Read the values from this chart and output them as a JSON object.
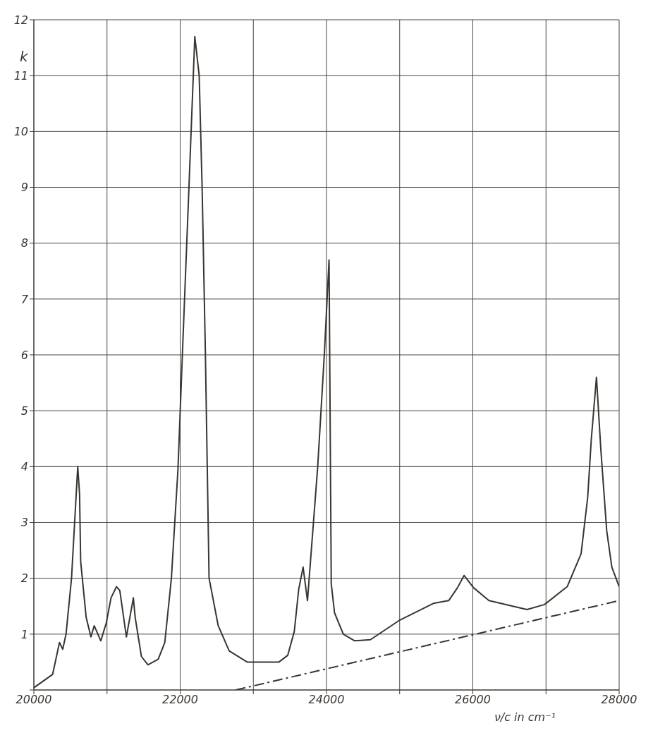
{
  "chart_data": {
    "type": "line",
    "ylabel": "k",
    "xlabel": "ν/c in cm⁻¹",
    "xlim": [
      20000,
      28000
    ],
    "ylim": [
      0,
      12
    ],
    "xticks": [
      20000,
      {
        "value": 21000,
        "label": null
      },
      22000,
      {
        "value": 23000,
        "label": null
      },
      24000,
      {
        "value": 25000,
        "label": null
      },
      26000,
      {
        "value": 27000,
        "label": null
      },
      28000
    ],
    "yticks": [
      {
        "value": 0,
        "label": null
      },
      1,
      2,
      3,
      4,
      5,
      6,
      7,
      8,
      9,
      10,
      11,
      12
    ],
    "grid": true,
    "marker": "none",
    "series": [
      {
        "color": "#3a3530",
        "line_style": "solid",
        "x": [
          20000,
          20257,
          20350,
          20395,
          20440,
          20515,
          20600,
          20625,
          20640,
          20715,
          20780,
          20825,
          20915,
          20990,
          21055,
          21130,
          21175,
          21265,
          21360,
          21385,
          21470,
          21560,
          21700,
          21790,
          21880,
          21970,
          22030,
          22120,
          22200,
          22260,
          22300,
          22345,
          22370,
          22395,
          22520,
          22670,
          22915,
          23350,
          23470,
          23560,
          23620,
          23680,
          23740,
          23880,
          23970,
          24035,
          24065,
          24110,
          24230,
          24385,
          24600,
          25000,
          25460,
          25670,
          25790,
          25880,
          26010,
          26220,
          26740,
          26980,
          27290,
          27480,
          27570,
          27620,
          27690,
          27750,
          27830,
          27900,
          28000
        ],
        "values": [
          0.04,
          0.28,
          0.85,
          0.73,
          1.0,
          2.0,
          4.0,
          3.5,
          2.3,
          1.3,
          0.95,
          1.15,
          0.88,
          1.2,
          1.65,
          1.85,
          1.78,
          0.95,
          1.65,
          1.3,
          0.6,
          0.45,
          0.55,
          0.85,
          2.0,
          3.95,
          6.0,
          9.0,
          11.7,
          11.0,
          9.0,
          6.0,
          4.0,
          2.0,
          1.15,
          0.7,
          0.5,
          0.5,
          0.62,
          1.05,
          1.8,
          2.2,
          1.6,
          4.0,
          6.0,
          7.7,
          1.9,
          1.38,
          1.0,
          0.88,
          0.9,
          1.25,
          1.55,
          1.6,
          1.83,
          2.05,
          1.83,
          1.6,
          1.44,
          1.53,
          1.85,
          2.44,
          3.45,
          4.5,
          5.6,
          4.3,
          2.85,
          2.2,
          1.85
        ]
      },
      {
        "color": "#3a3530",
        "line_style": "dashed",
        "x": [
          22760,
          28000
        ],
        "values": [
          0,
          1.6
        ]
      }
    ]
  }
}
